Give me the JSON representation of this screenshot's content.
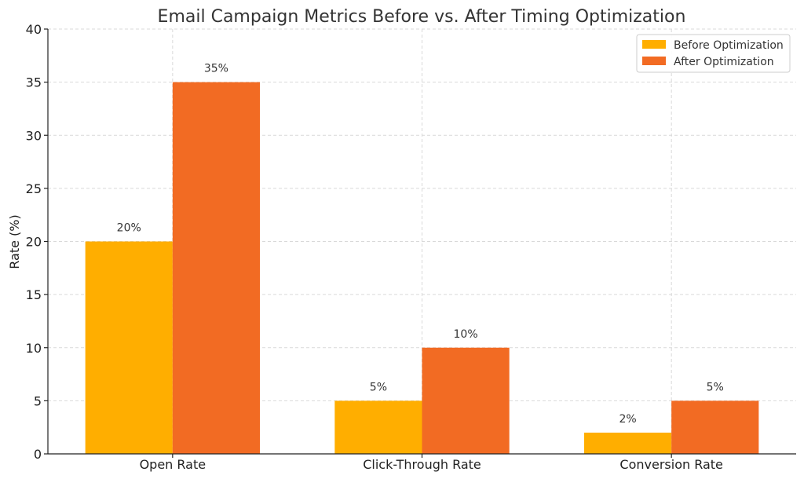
{
  "chart_data": {
    "type": "bar",
    "title": "Email Campaign Metrics Before vs. After Timing Optimization",
    "xlabel": "",
    "ylabel": "Rate (%)",
    "categories": [
      "Open Rate",
      "Click-Through Rate",
      "Conversion Rate"
    ],
    "series": [
      {
        "name": "Before Optimization",
        "color": "#FFAE00",
        "values": [
          20,
          5,
          2
        ],
        "labels": [
          "20%",
          "5%",
          "2%"
        ]
      },
      {
        "name": "After Optimization",
        "color": "#F26B23",
        "values": [
          35,
          10,
          5
        ],
        "labels": [
          "35%",
          "10%",
          "5%"
        ]
      }
    ],
    "ylim": [
      0,
      40
    ],
    "yticks": [
      0,
      5,
      10,
      15,
      20,
      25,
      30,
      35,
      40
    ],
    "grid": true,
    "legend_position": "top-right"
  }
}
